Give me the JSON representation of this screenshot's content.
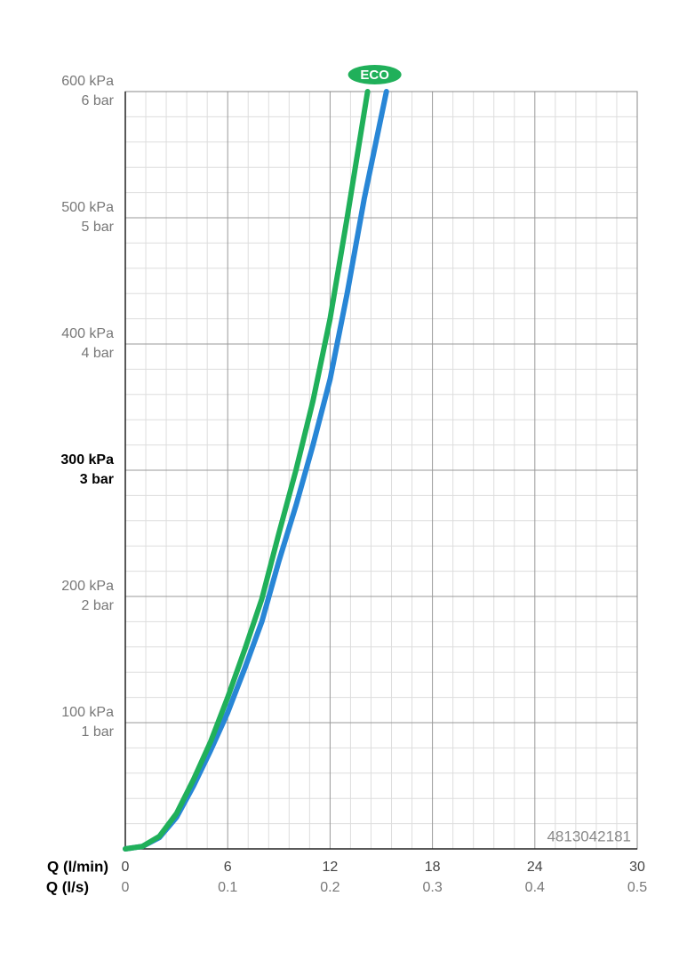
{
  "chart_data": {
    "type": "line",
    "x_label": "Q (l/min)",
    "x2_label": "Q (l/s)",
    "xlim": [
      0,
      30
    ],
    "xticks": [
      0,
      6,
      12,
      18,
      24,
      30
    ],
    "x2lim": [
      0,
      0.5
    ],
    "x2ticks": [
      0,
      0.1,
      0.2,
      0.3,
      0.4,
      0.5
    ],
    "ylim": [
      0,
      600
    ],
    "yticks": [
      {
        "value": 100,
        "label": "100 kPa"
      },
      {
        "value": 200,
        "label": "200 kPa"
      },
      {
        "value": 300,
        "label": "300 kPa"
      },
      {
        "value": 400,
        "label": "400 kPa"
      },
      {
        "value": 500,
        "label": "500 kPa"
      },
      {
        "value": 600,
        "label": "600 kPa"
      }
    ],
    "y2lim": [
      0,
      6
    ],
    "y2ticks": [
      {
        "value": 1,
        "label": "1 bar"
      },
      {
        "value": 2,
        "label": "2 bar"
      },
      {
        "value": 3,
        "label": "3 bar"
      },
      {
        "value": 4,
        "label": "4 bar"
      },
      {
        "value": 5,
        "label": "5 bar"
      },
      {
        "value": 6,
        "label": "6 bar"
      }
    ],
    "emphasized_ytick": 300,
    "grid": true,
    "minor_grid": true,
    "annotation": "4813042181",
    "series": [
      {
        "name": "ECO",
        "color": "#20b05a",
        "x": [
          0,
          1,
          2,
          3,
          4,
          5,
          6,
          7,
          8,
          9,
          10,
          11,
          12,
          13,
          14.2
        ],
        "values": [
          0,
          2,
          10,
          28,
          55,
          85,
          120,
          158,
          198,
          250,
          300,
          355,
          420,
          500,
          600
        ]
      },
      {
        "color": "#2886d6",
        "x": [
          0,
          1,
          2,
          3,
          4,
          5,
          6,
          7,
          8,
          9,
          10,
          11,
          12,
          13,
          14,
          15.3
        ],
        "values": [
          0,
          2,
          9,
          25,
          50,
          78,
          108,
          143,
          180,
          228,
          272,
          320,
          372,
          440,
          515,
          600
        ]
      }
    ]
  }
}
